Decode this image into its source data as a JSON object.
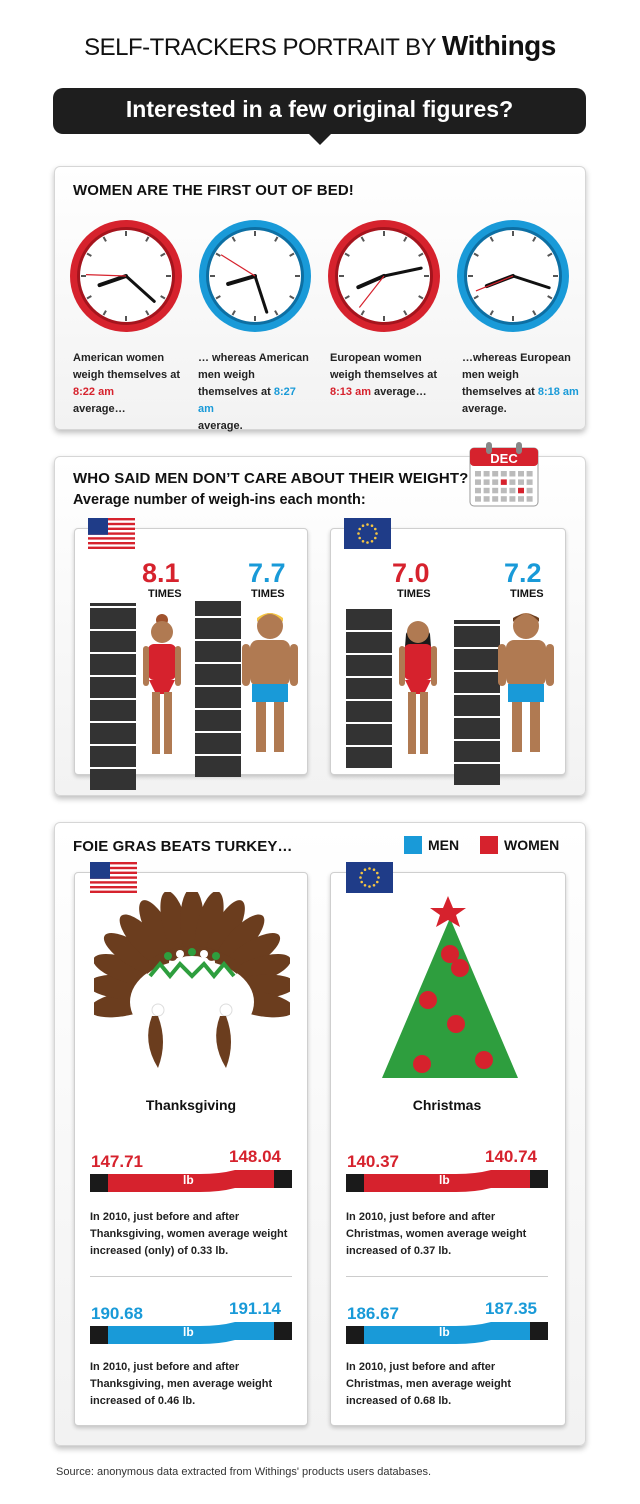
{
  "header": {
    "brand_prefix": "SELF-TRACKERS PORTRAIT BY",
    "brand_name": "Withings",
    "banner": "Interested in a few original figures?"
  },
  "wakeup": {
    "title": "WOMEN ARE THE FIRST OUT OF BED!",
    "clocks": [
      {
        "ring": "#d6222d",
        "time": "8:22 am",
        "pre": "American women weigh themselves at",
        "post": "average…",
        "hour": 8,
        "minute": 22
      },
      {
        "ring": "#199ad8",
        "time": "8:27 am",
        "pre": "… whereas American men weigh themselves at",
        "post": "average.",
        "hour": 8,
        "minute": 27
      },
      {
        "ring": "#d6222d",
        "time": "8:13 am",
        "pre": "European women weigh themselves at",
        "post": "average…",
        "hour": 8,
        "minute": 13
      },
      {
        "ring": "#199ad8",
        "time": "8:18 am",
        "pre": "…whereas European men weigh themselves at",
        "post": "average.",
        "hour": 8,
        "minute": 18
      }
    ]
  },
  "weighins": {
    "title": "WHO SAID MEN DON’T CARE ABOUT THEIR WEIGHT?",
    "subtitle": "Average number of weigh-ins each month:",
    "calendar_label": "DEC",
    "us": {
      "women": "8.1",
      "men": "7.7",
      "women_value": 8.1,
      "men_value": 7.7
    },
    "eu": {
      "women": "7.0",
      "men": "7.2",
      "women_value": 7.0,
      "men_value": 7.2
    },
    "times_label": "TIMES"
  },
  "holidays": {
    "title": "FOIE GRAS BEATS TURKEY…",
    "legend_men": "MEN",
    "legend_women": "WOMEN",
    "unit": "lb",
    "thanksgiving": {
      "label": "Thanksgiving",
      "women_before": "147.71",
      "women_after": "148.04",
      "women_text": "In 2010, just before and after Thanksgiving, women average weight increased (only) of 0.33 lb.",
      "men_before": "190.68",
      "men_after": "191.14",
      "men_text": "In 2010, just before and after Thanksgiving, men average weight increased of 0.46 lb."
    },
    "christmas": {
      "label": "Christmas",
      "women_before": "140.37",
      "women_after": "140.74",
      "women_text": "In 2010, just before and after Christmas, women average weight increased of 0.37 lb.",
      "men_before": "186.67",
      "men_after": "187.35",
      "men_text": "In 2010, just before and after Christmas, men average weight increased of 0.68 lb."
    }
  },
  "source": "Source: anonymous data extracted from Withings' products users databases.",
  "colors": {
    "red": "#d6222d",
    "blue": "#199ad8",
    "dark": "#333333"
  }
}
